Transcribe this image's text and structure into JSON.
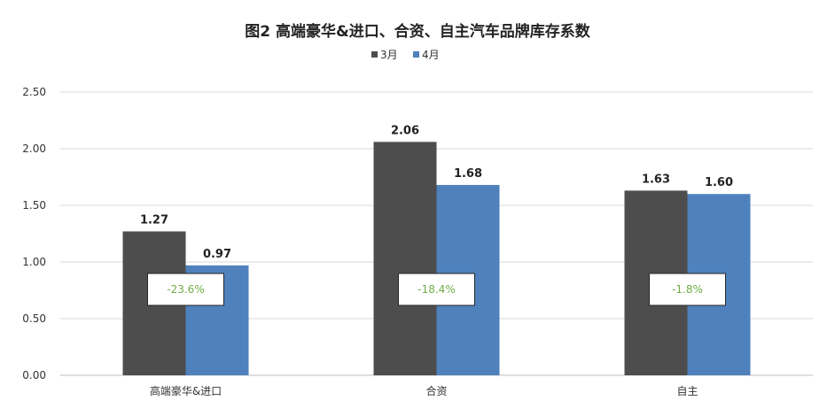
{
  "chart_data": {
    "type": "bar",
    "title": "图2  高端豪华&进口、合资、自主汽车品牌库存系数",
    "categories": [
      "高端豪华&进口",
      "合资",
      "自主"
    ],
    "series": [
      {
        "name": "3月",
        "values": [
          1.27,
          2.06,
          1.63
        ],
        "value_labels": [
          "1.27",
          "2.06",
          "1.63"
        ],
        "color": "#4d4d4d"
      },
      {
        "name": "4月",
        "values": [
          0.97,
          1.68,
          1.6
        ],
        "value_labels": [
          "0.97",
          "1.68",
          "1.60"
        ],
        "color": "#4f81bd"
      }
    ],
    "annotations": [
      "-23.6%",
      "-18.4%",
      "-1.8%"
    ],
    "annotation_color": "#70ad47",
    "yticks": [
      "0.00",
      "0.50",
      "1.00",
      "1.50",
      "2.00",
      "2.50"
    ],
    "ylim": [
      0,
      2.5
    ],
    "grid": true,
    "legend_position": "top-center",
    "xlabel": "",
    "ylabel": ""
  }
}
